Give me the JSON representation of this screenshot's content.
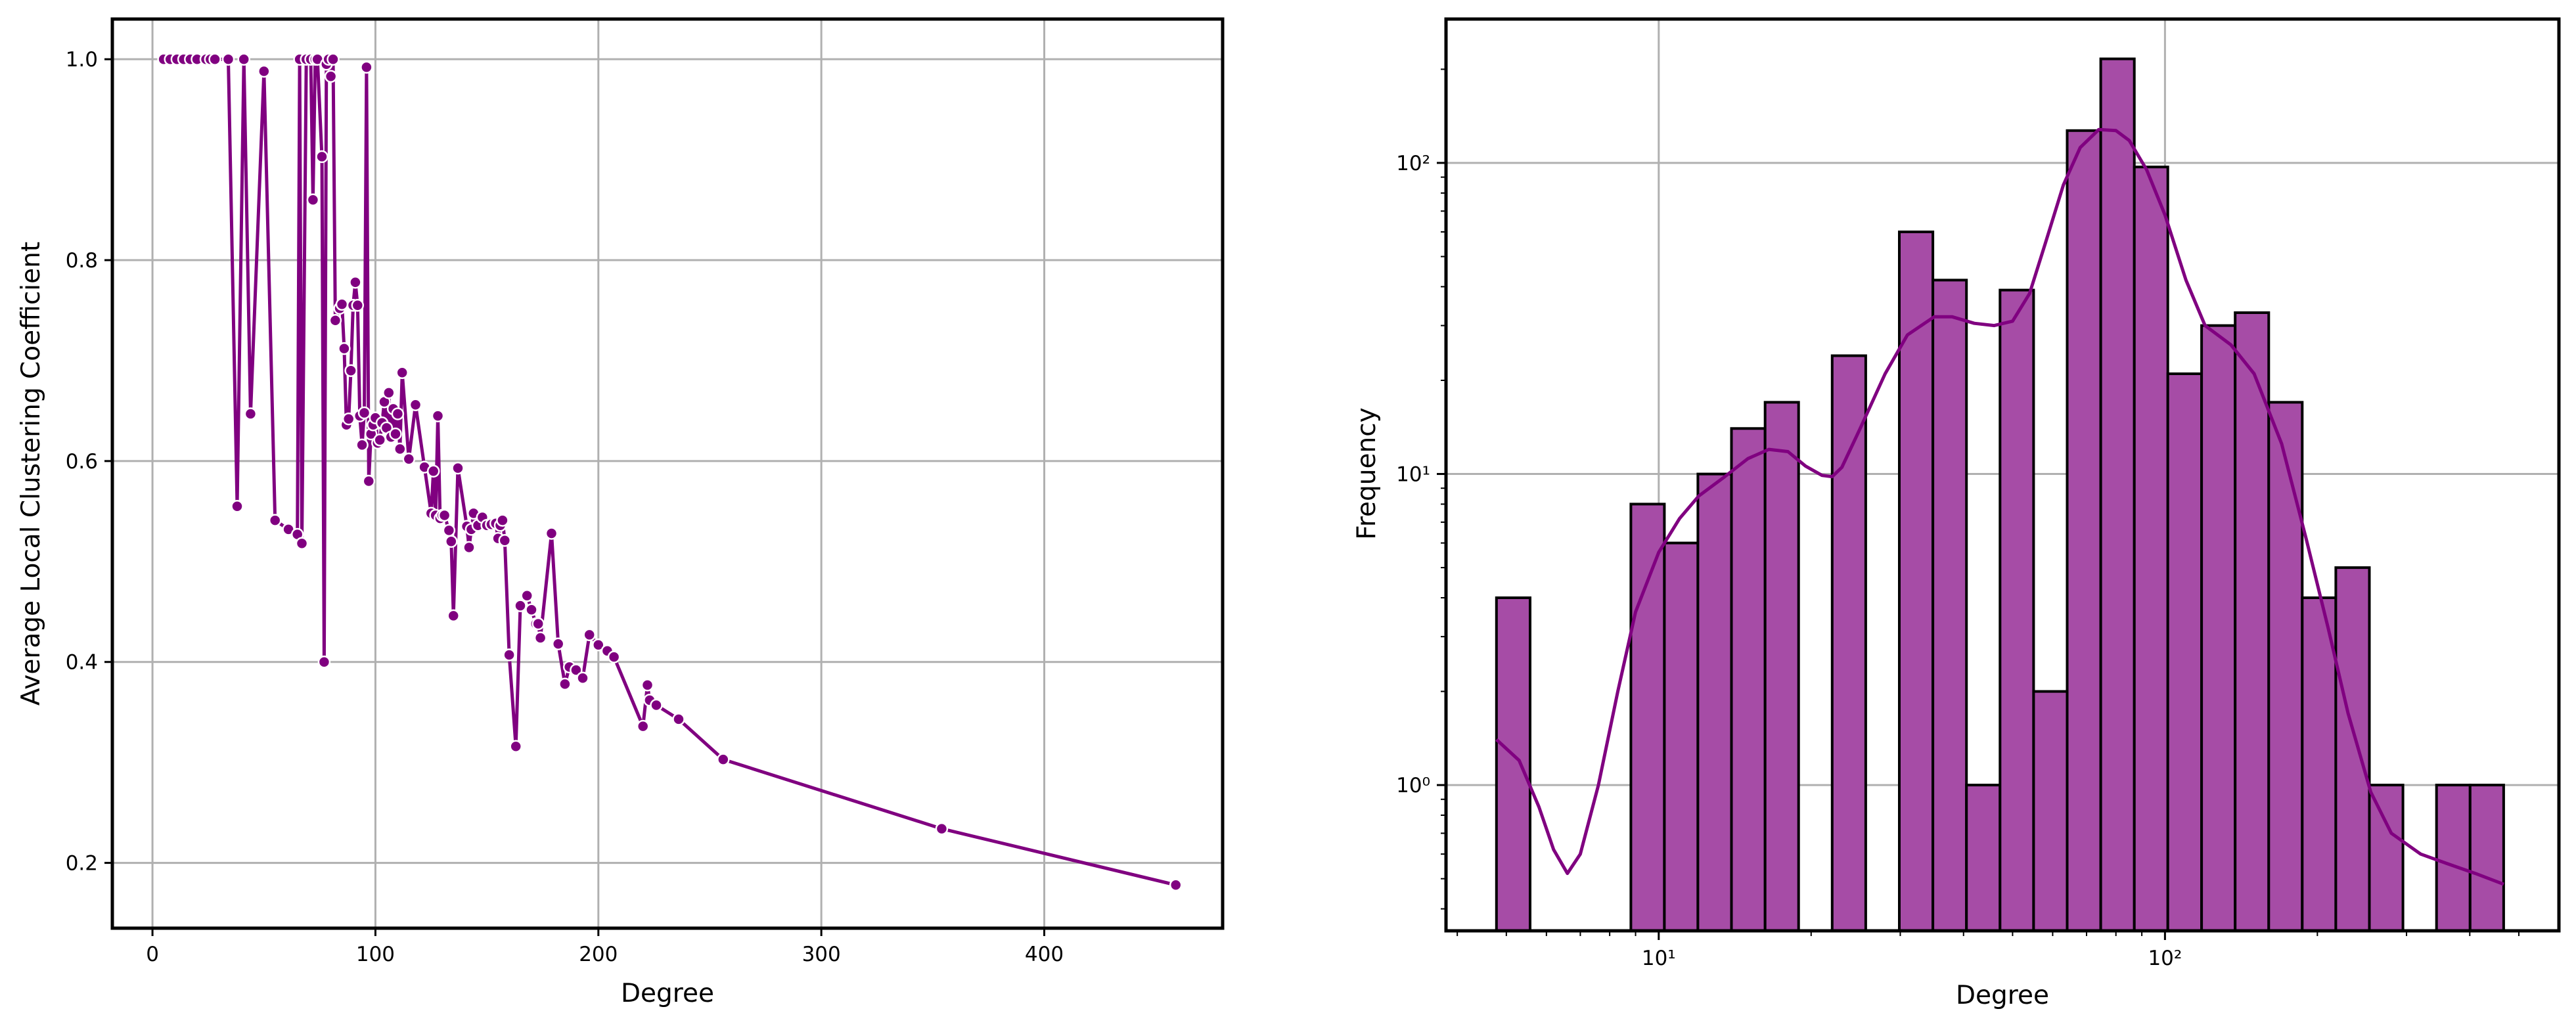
{
  "chart_data": [
    {
      "type": "line",
      "title": "",
      "xlabel": "Degree",
      "ylabel": "Average Local Clustering Coefficient",
      "xlim": [
        -18,
        480
      ],
      "ylim": [
        0.135,
        1.04
      ],
      "xticks": [
        0,
        100,
        200,
        300,
        400
      ],
      "yticks": [
        0.2,
        0.4,
        0.6,
        0.8,
        1.0
      ],
      "xtick_labels": [
        "0",
        "100",
        "200",
        "300",
        "400"
      ],
      "ytick_labels": [
        "0.2",
        "0.4",
        "0.6",
        "0.8",
        "1.0"
      ],
      "grid": true,
      "color": "#800080",
      "x": [
        5,
        8,
        11,
        14,
        17,
        20,
        24,
        26,
        28,
        34,
        38,
        41,
        44,
        50,
        55,
        61,
        65,
        66,
        67,
        69,
        71,
        72,
        73,
        74,
        76,
        77,
        78,
        79,
        80,
        81,
        82,
        84,
        85,
        86,
        87,
        88,
        89,
        90,
        91,
        92,
        93,
        94,
        95,
        96,
        97,
        98,
        99,
        100,
        101,
        102,
        103,
        104,
        105,
        106,
        107,
        108,
        109,
        110,
        111,
        112,
        115,
        118,
        122,
        125,
        126,
        127,
        128,
        129,
        130,
        131,
        133,
        134,
        135,
        137,
        141,
        142,
        143,
        144,
        146,
        148,
        150,
        152,
        154,
        155,
        156,
        157,
        158,
        160,
        163,
        165,
        168,
        170,
        172,
        173,
        174,
        179,
        182,
        185,
        187,
        190,
        193,
        196,
        200,
        204,
        207,
        220,
        222,
        223,
        226,
        236,
        256,
        354,
        459
      ],
      "y": [
        1.0,
        1.0,
        1.0,
        1.0,
        1.0,
        1.0,
        1.0,
        1.0,
        1.0,
        1.0,
        0.555,
        1.0,
        0.647,
        0.988,
        0.541,
        0.532,
        0.527,
        1.0,
        0.518,
        1.0,
        1.0,
        0.86,
        1.0,
        1.0,
        0.903,
        0.4,
        0.995,
        1.0,
        0.983,
        1.0,
        0.74,
        0.752,
        0.756,
        0.712,
        0.636,
        0.642,
        0.69,
        0.755,
        0.778,
        0.755,
        0.645,
        0.616,
        0.648,
        0.992,
        0.58,
        0.627,
        0.636,
        0.643,
        0.618,
        0.621,
        0.638,
        0.659,
        0.633,
        0.668,
        0.624,
        0.652,
        0.627,
        0.647,
        0.612,
        0.688,
        0.602,
        0.656,
        0.594,
        0.548,
        0.59,
        0.546,
        0.645,
        0.543,
        0.546,
        0.546,
        0.531,
        0.52,
        0.446,
        0.593,
        0.535,
        0.514,
        0.532,
        0.548,
        0.536,
        0.544,
        0.536,
        0.537,
        0.538,
        0.523,
        0.536,
        0.541,
        0.521,
        0.407,
        0.316,
        0.456,
        0.466,
        0.452,
        0.438,
        0.438,
        0.424,
        0.528,
        0.418,
        0.378,
        0.395,
        0.392,
        0.384,
        0.427,
        0.417,
        0.411,
        0.405,
        0.336,
        0.377,
        0.362,
        0.357,
        0.343,
        0.303,
        0.234,
        0.178
      ]
    },
    {
      "type": "bar",
      "title": "",
      "xlabel": "Degree",
      "ylabel": "Frequency",
      "x_scale": "log",
      "y_scale": "log",
      "xlim": [
        3.8,
        600
      ],
      "ylim": [
        0.34,
        290
      ],
      "xtick_labels": [
        "10¹",
        "10²"
      ],
      "ytick_labels": [
        "10⁰",
        "10¹",
        "10²"
      ],
      "grid": true,
      "bar_color": "#a64ca6",
      "line_color": "#800080",
      "bin_edges": [
        4.78,
        5.57,
        6.49,
        7.56,
        8.81,
        10.26,
        11.95,
        13.92,
        16.22,
        18.89,
        22.01,
        25.64,
        29.87,
        34.8,
        40.54,
        47.23,
        55.02,
        64.1,
        74.67,
        86.99,
        101.3,
        118.1,
        137.6,
        160.3,
        186.7,
        217.5,
        253.4,
        295.2,
        343.9,
        400.6,
        466.7
      ],
      "counts": [
        4,
        0,
        0,
        0,
        8,
        6,
        10,
        14,
        17,
        0,
        24,
        0,
        60,
        42,
        1,
        39,
        2,
        127,
        216,
        97,
        21,
        30,
        33,
        17,
        4,
        5,
        1,
        0,
        1,
        1
      ],
      "kde": {
        "x": [
          4.78,
          5.3,
          5.8,
          6.2,
          6.6,
          7.0,
          7.6,
          8.3,
          9.0,
          10.0,
          11.0,
          12.0,
          13.5,
          15.0,
          16.5,
          18.0,
          19.5,
          21.0,
          22.0,
          23.0,
          25.0,
          28.0,
          31.0,
          35.0,
          38.0,
          42.0,
          46.0,
          50.0,
          54.0,
          58.0,
          63.0,
          68.0,
          74.0,
          80.0,
          85.0,
          92.0,
          100.0,
          110.0,
          120.0,
          135.0,
          150.0,
          170.0,
          190.0,
          210.0,
          230.0,
          255.0,
          280.0,
          320.0,
          360.0,
          410.0,
          466.7
        ],
        "y": [
          1.4,
          1.2,
          0.85,
          0.62,
          0.52,
          0.6,
          1.0,
          2.0,
          3.6,
          5.6,
          7.2,
          8.5,
          9.8,
          11.2,
          12.0,
          11.8,
          10.6,
          9.9,
          9.8,
          10.5,
          14.0,
          21.0,
          28.0,
          32.0,
          32.0,
          30.5,
          30.0,
          31.0,
          38.0,
          55.0,
          85.0,
          112.0,
          128.0,
          127.0,
          118.0,
          95.0,
          68.0,
          42.0,
          30.0,
          26.0,
          21.0,
          12.5,
          6.2,
          3.2,
          1.7,
          0.95,
          0.7,
          0.6,
          0.56,
          0.52,
          0.48
        ]
      }
    }
  ]
}
